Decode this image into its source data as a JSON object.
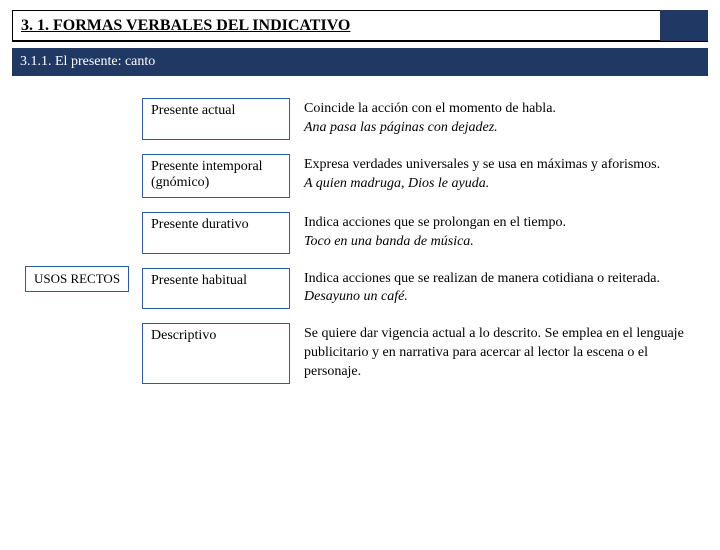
{
  "colors": {
    "header_dark_blue": "#1f3864",
    "box_border_blue": "#2e5ca4",
    "background": "#ffffff",
    "text": "#000000"
  },
  "typography": {
    "title_fontsize": 16,
    "subtitle_fontsize": 14,
    "body_fontsize": 14,
    "font_family": "Times New Roman"
  },
  "title": "3. 1. FORMAS VERBALES DEL INDICATIVO",
  "subtitle": "3.1.1. El presente: canto",
  "left_label": "USOS RECTOS",
  "rows": [
    {
      "term": "Presente actual",
      "desc": "Coincide la acción con el momento de habla.",
      "example": "Ana pasa las páginas con dejadez."
    },
    {
      "term": "Presente intemporal (gnómico)",
      "desc": "Expresa verdades universales y se usa en máximas y aforismos.",
      "example": "A quien madruga, Dios le ayuda."
    },
    {
      "term": "Presente durativo",
      "desc": "Indica acciones que se prolongan en el tiempo.",
      "example": "Toco en una banda de música."
    },
    {
      "term": "Presente habitual",
      "desc": "Indica acciones que se realizan de manera cotidiana o reiterada.",
      "example": "Desayuno un café."
    },
    {
      "term": "Descriptivo",
      "desc": "Se quiere dar vigencia actual a lo descrito. Se emplea en el lenguaje publicitario y en narrativa para acercar al lector la escena o el personaje.",
      "example": ""
    }
  ]
}
